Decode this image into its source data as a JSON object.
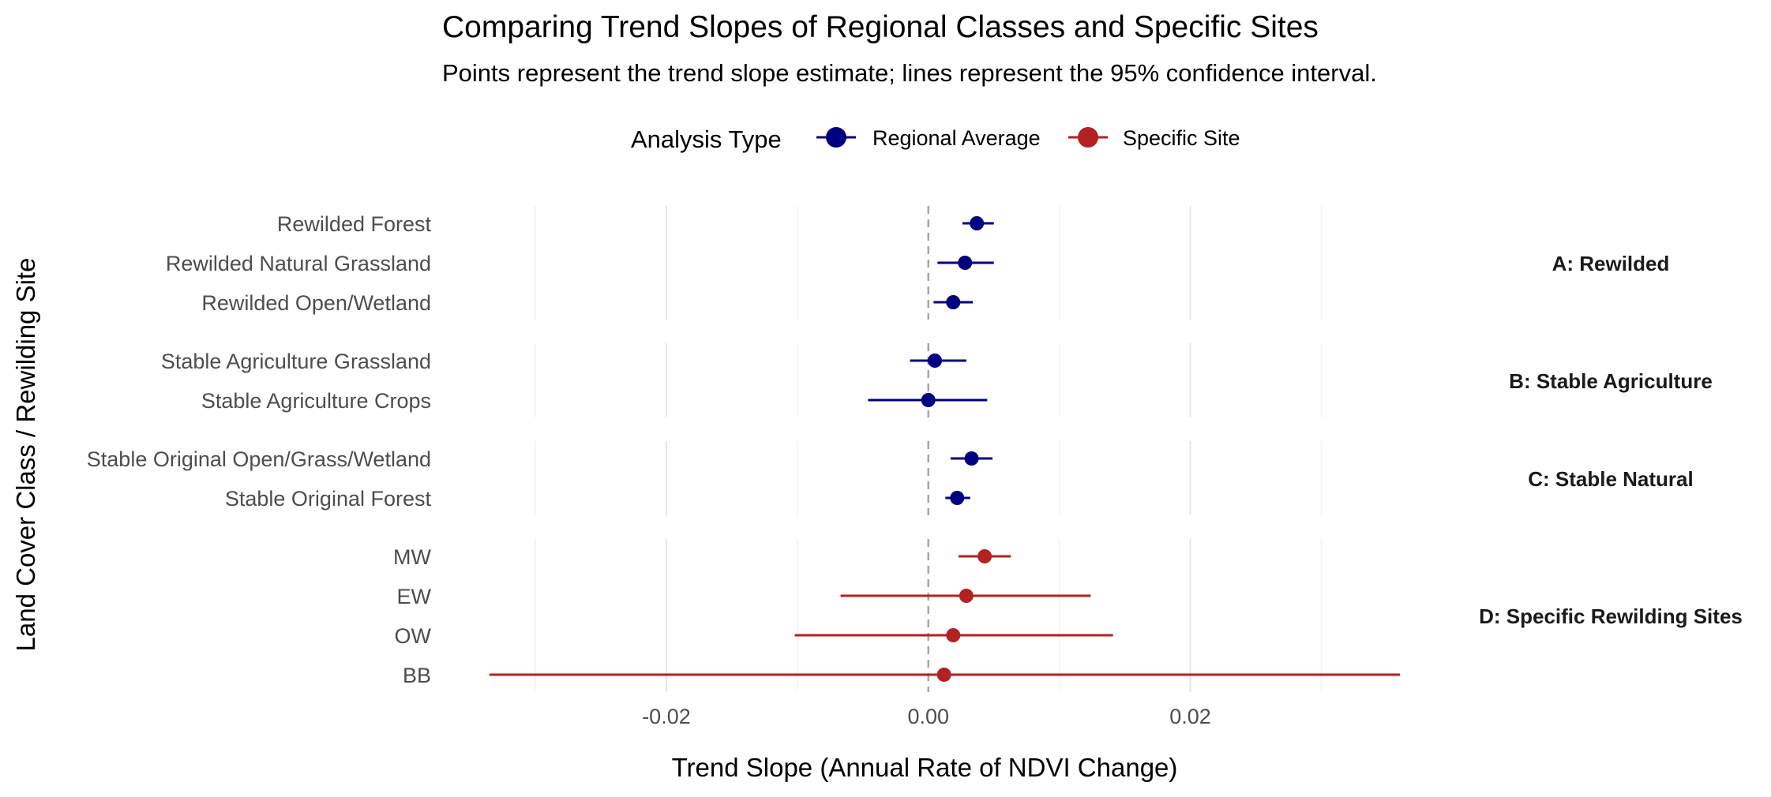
{
  "chart_data": {
    "type": "scatter",
    "subtype": "forest-plot",
    "title": "Comparing Trend Slopes of Regional Classes and Specific Sites",
    "subtitle": "Points represent the trend slope estimate; lines represent the 95% confidence interval.",
    "xlabel": "Trend Slope (Annual Rate of NDVI Change)",
    "ylabel": "Land Cover Class / Rewilding Site",
    "xlim": [
      -0.0335,
      0.036
    ],
    "x_ticks": [
      -0.02,
      0.0,
      0.02
    ],
    "x_tick_labels": [
      "-0.02",
      "0.00",
      "0.02"
    ],
    "reference_line_x": 0,
    "grid": true,
    "legend": {
      "title": "Analysis Type",
      "position": "top",
      "entries": [
        {
          "label": "Regional Average",
          "color": "#000080"
        },
        {
          "label": "Specific Site",
          "color": "#B22222"
        }
      ]
    },
    "facets": [
      {
        "label": "A: Rewilded",
        "rows": [
          {
            "name": "Rewilded Forest",
            "estimate": 0.0037,
            "lower": 0.0026,
            "upper": 0.005,
            "group": "Regional Average"
          },
          {
            "name": "Rewilded Natural Grassland",
            "estimate": 0.0028,
            "lower": 0.0007,
            "upper": 0.005,
            "group": "Regional Average"
          },
          {
            "name": "Rewilded Open/Wetland",
            "estimate": 0.0019,
            "lower": 0.0004,
            "upper": 0.0034,
            "group": "Regional Average"
          }
        ]
      },
      {
        "label": "B: Stable Agriculture",
        "rows": [
          {
            "name": "Stable Agriculture Grassland",
            "estimate": 0.0005,
            "lower": -0.0014,
            "upper": 0.0029,
            "group": "Regional Average"
          },
          {
            "name": "Stable Agriculture Crops",
            "estimate": 0.0,
            "lower": -0.0046,
            "upper": 0.0045,
            "group": "Regional Average"
          }
        ]
      },
      {
        "label": "C: Stable Natural",
        "rows": [
          {
            "name": "Stable Original Open/Grass/Wetland",
            "estimate": 0.0033,
            "lower": 0.0017,
            "upper": 0.0049,
            "group": "Regional Average"
          },
          {
            "name": "Stable Original Forest",
            "estimate": 0.0022,
            "lower": 0.0013,
            "upper": 0.0032,
            "group": "Regional Average"
          }
        ]
      },
      {
        "label": "D: Specific Rewilding Sites",
        "rows": [
          {
            "name": "MW",
            "estimate": 0.0043,
            "lower": 0.0023,
            "upper": 0.0063,
            "group": "Specific Site"
          },
          {
            "name": "EW",
            "estimate": 0.0029,
            "lower": -0.0067,
            "upper": 0.0124,
            "group": "Specific Site"
          },
          {
            "name": "OW",
            "estimate": 0.0019,
            "lower": -0.0102,
            "upper": 0.0141,
            "group": "Specific Site"
          },
          {
            "name": "BB",
            "estimate": 0.0012,
            "lower": -0.0335,
            "upper": 0.036,
            "group": "Specific Site"
          }
        ]
      }
    ]
  }
}
